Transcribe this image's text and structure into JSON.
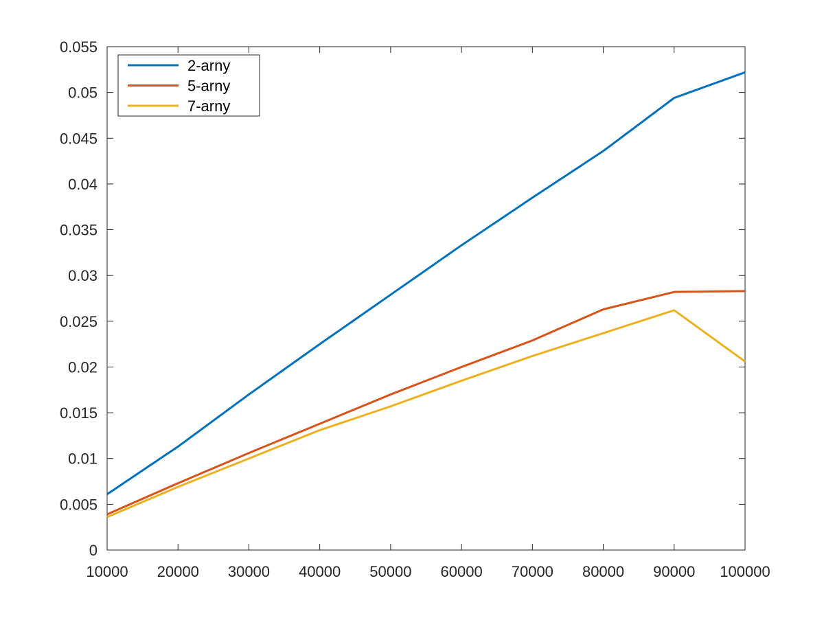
{
  "chart_data": {
    "type": "line",
    "x": [
      10000,
      20000,
      30000,
      40000,
      50000,
      60000,
      70000,
      80000,
      90000,
      100000
    ],
    "series": [
      {
        "name": "2-arny",
        "color": "#0072bd",
        "values": [
          0.0061,
          0.0113,
          0.017,
          0.0225,
          0.0279,
          0.0333,
          0.0385,
          0.0436,
          0.0494,
          0.0522
        ]
      },
      {
        "name": "5-arny",
        "color": "#d95319",
        "values": [
          0.0039,
          0.0073,
          0.0106,
          0.0138,
          0.017,
          0.02,
          0.0229,
          0.0263,
          0.0282,
          0.0283
        ]
      },
      {
        "name": "7-arny",
        "color": "#edb120",
        "values": [
          0.0036,
          0.0069,
          0.01,
          0.0131,
          0.0157,
          0.0185,
          0.0212,
          0.0237,
          0.0262,
          0.0206
        ]
      }
    ],
    "xlim": [
      10000,
      100000
    ],
    "ylim": [
      0,
      0.055
    ],
    "x_ticks": [
      "10000",
      "20000",
      "30000",
      "40000",
      "50000",
      "60000",
      "70000",
      "80000",
      "90000",
      "100000"
    ],
    "y_ticks": [
      "0",
      "0.005",
      "0.01",
      "0.015",
      "0.02",
      "0.025",
      "0.03",
      "0.035",
      "0.04",
      "0.045",
      "0.05",
      "0.055"
    ],
    "title": "",
    "xlabel": "",
    "ylabel": "",
    "grid": false,
    "legend_position": "top-left"
  }
}
